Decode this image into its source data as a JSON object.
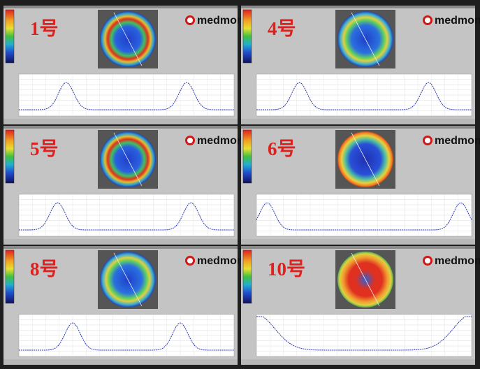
{
  "panels": [
    {
      "label": "1号",
      "brand": "medmont"
    },
    {
      "label": "4号",
      "brand": "medmont"
    },
    {
      "label": "5号",
      "brand": "medmont"
    },
    {
      "label": "6号",
      "brand": "medmont"
    },
    {
      "label": "8号",
      "brand": "medmont"
    },
    {
      "label": "10号",
      "brand": "medmont"
    }
  ]
}
